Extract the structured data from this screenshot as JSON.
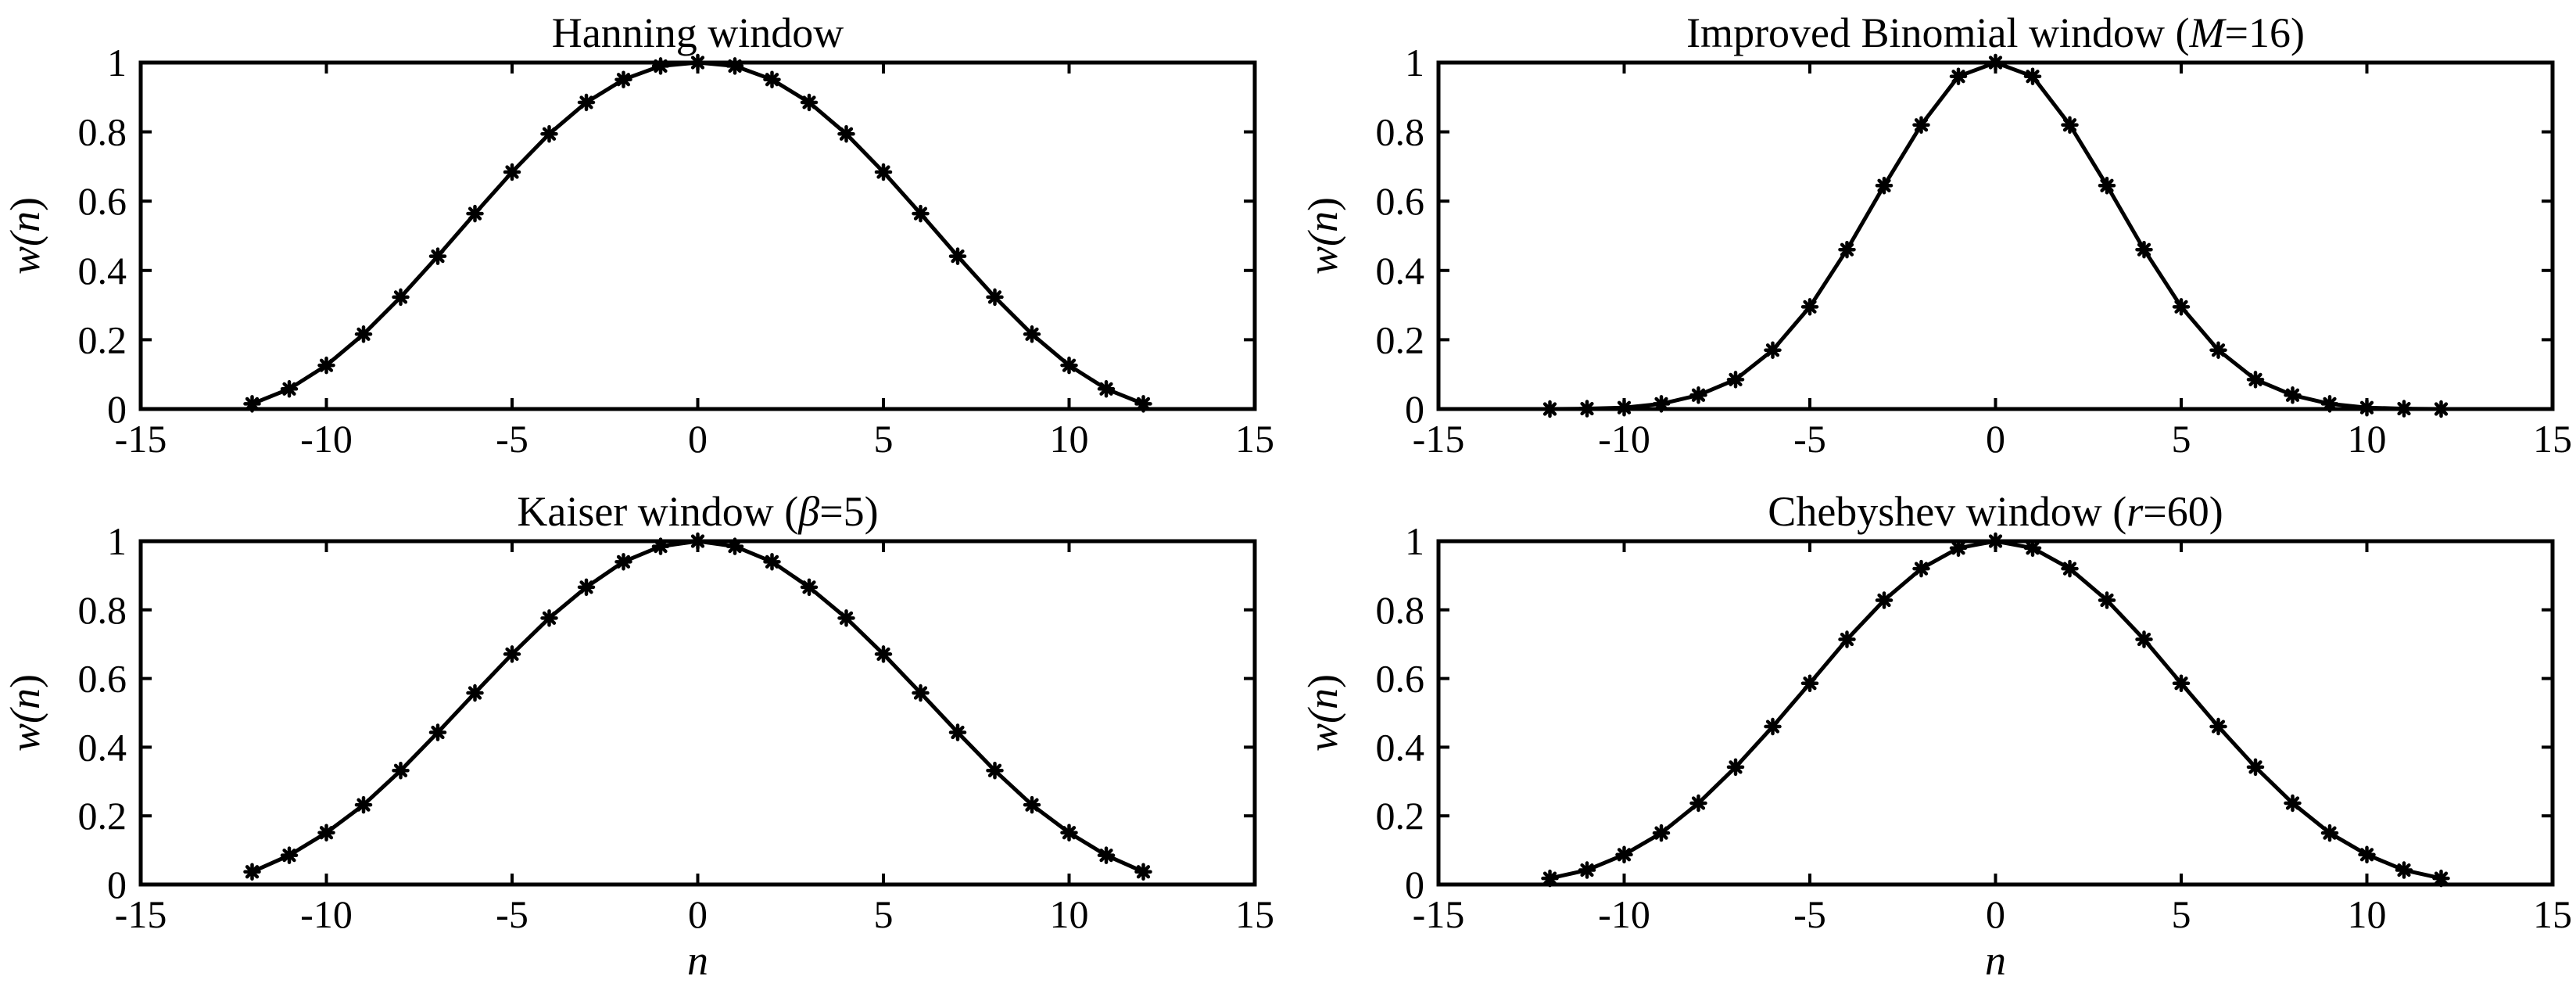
{
  "chart_data": [
    {
      "type": "line",
      "title_parts": [
        {
          "t": "Hanning window",
          "i": false
        }
      ],
      "ylabel": {
        "pre": "w(",
        "var": "n",
        "post": ")"
      },
      "xlabel": "",
      "xlim": [
        -15,
        15
      ],
      "ylim": [
        0,
        1
      ],
      "xticks": [
        -15,
        -10,
        -5,
        0,
        5,
        10,
        15
      ],
      "xtick_labels": [
        "-15",
        "-10",
        "-5",
        "0",
        "5",
        "10",
        "15"
      ],
      "yticks": [
        0,
        0.2,
        0.4,
        0.6,
        0.8,
        1
      ],
      "ytick_labels": [
        "0",
        "0.2",
        "0.4",
        "0.6",
        "0.8",
        "1"
      ],
      "grid": false,
      "marker": "asterisk",
      "x": [
        -12,
        -11,
        -10,
        -9,
        -8,
        -7,
        -6,
        -5,
        -4,
        -3,
        -2,
        -1,
        0,
        1,
        2,
        3,
        4,
        5,
        6,
        7,
        8,
        9,
        10,
        11,
        12
      ],
      "y": [
        0.015,
        0.058,
        0.126,
        0.216,
        0.323,
        0.441,
        0.564,
        0.684,
        0.794,
        0.885,
        0.951,
        0.99,
        1,
        0.99,
        0.951,
        0.885,
        0.794,
        0.684,
        0.564,
        0.441,
        0.323,
        0.216,
        0.126,
        0.058,
        0.015
      ]
    },
    {
      "type": "line",
      "title_parts": [
        {
          "t": "Improved Binomial window (",
          "i": false
        },
        {
          "t": "M",
          "i": true
        },
        {
          "t": "=16)",
          "i": false
        }
      ],
      "ylabel": {
        "pre": "w(",
        "var": "n",
        "post": ")"
      },
      "xlabel": "",
      "xlim": [
        -15,
        15
      ],
      "ylim": [
        0,
        1
      ],
      "xticks": [
        -15,
        -10,
        -5,
        0,
        5,
        10,
        15
      ],
      "xtick_labels": [
        "-15",
        "-10",
        "-5",
        "0",
        "5",
        "10",
        "15"
      ],
      "yticks": [
        0,
        0.2,
        0.4,
        0.6,
        0.8,
        1
      ],
      "ytick_labels": [
        "0",
        "0.2",
        "0.4",
        "0.6",
        "0.8",
        "1"
      ],
      "grid": false,
      "marker": "asterisk",
      "x": [
        -12,
        -11,
        -10,
        -9,
        -8,
        -7,
        -6,
        -5,
        -4,
        -3,
        -2,
        -1,
        0,
        1,
        2,
        3,
        4,
        5,
        6,
        7,
        8,
        9,
        10,
        11,
        12
      ],
      "y": [
        0,
        0.001,
        0.004,
        0.015,
        0.04,
        0.085,
        0.17,
        0.295,
        0.46,
        0.645,
        0.82,
        0.96,
        1,
        0.96,
        0.82,
        0.645,
        0.46,
        0.295,
        0.17,
        0.085,
        0.04,
        0.015,
        0.004,
        0.001,
        0
      ]
    },
    {
      "type": "line",
      "title_parts": [
        {
          "t": "Kaiser window (",
          "i": false
        },
        {
          "t": "β",
          "i": true
        },
        {
          "t": "=5)",
          "i": false
        }
      ],
      "ylabel": {
        "pre": "w(",
        "var": "n",
        "post": ")"
      },
      "xlabel": "n",
      "xlim": [
        -15,
        15
      ],
      "ylim": [
        0,
        1
      ],
      "xticks": [
        -15,
        -10,
        -5,
        0,
        5,
        10,
        15
      ],
      "xtick_labels": [
        "-15",
        "-10",
        "-5",
        "0",
        "5",
        "10",
        "15"
      ],
      "yticks": [
        0,
        0.2,
        0.4,
        0.6,
        0.8,
        1
      ],
      "ytick_labels": [
        "0",
        "0.2",
        "0.4",
        "0.6",
        "0.8",
        "1"
      ],
      "grid": false,
      "marker": "asterisk",
      "x": [
        -12,
        -11,
        -10,
        -9,
        -8,
        -7,
        -6,
        -5,
        -4,
        -3,
        -2,
        -1,
        0,
        1,
        2,
        3,
        4,
        5,
        6,
        7,
        8,
        9,
        10,
        11,
        12
      ],
      "y": [
        0.037,
        0.085,
        0.151,
        0.232,
        0.332,
        0.443,
        0.558,
        0.671,
        0.776,
        0.866,
        0.94,
        0.985,
        1,
        0.985,
        0.94,
        0.866,
        0.776,
        0.671,
        0.558,
        0.443,
        0.332,
        0.232,
        0.151,
        0.085,
        0.037
      ]
    },
    {
      "type": "line",
      "title_parts": [
        {
          "t": "Chebyshev window (",
          "i": false
        },
        {
          "t": "r",
          "i": true
        },
        {
          "t": "=60)",
          "i": false
        }
      ],
      "ylabel": {
        "pre": "w(",
        "var": "n",
        "post": ")"
      },
      "xlabel": "n",
      "xlim": [
        -15,
        15
      ],
      "ylim": [
        0,
        1
      ],
      "xticks": [
        -15,
        -10,
        -5,
        0,
        5,
        10,
        15
      ],
      "xtick_labels": [
        "-15",
        "-10",
        "-5",
        "0",
        "5",
        "10",
        "15"
      ],
      "yticks": [
        0,
        0.2,
        0.4,
        0.6,
        0.8,
        1
      ],
      "ytick_labels": [
        "0",
        "0.2",
        "0.4",
        "0.6",
        "0.8",
        "1"
      ],
      "grid": false,
      "marker": "asterisk",
      "x": [
        -12,
        -11,
        -10,
        -9,
        -8,
        -7,
        -6,
        -5,
        -4,
        -3,
        -2,
        -1,
        0,
        1,
        2,
        3,
        4,
        5,
        6,
        7,
        8,
        9,
        10,
        11,
        12
      ],
      "y": [
        0.018,
        0.042,
        0.087,
        0.15,
        0.237,
        0.342,
        0.46,
        0.586,
        0.714,
        0.828,
        0.92,
        0.98,
        1,
        0.98,
        0.92,
        0.828,
        0.714,
        0.586,
        0.46,
        0.342,
        0.237,
        0.15,
        0.087,
        0.042,
        0.018
      ]
    }
  ]
}
